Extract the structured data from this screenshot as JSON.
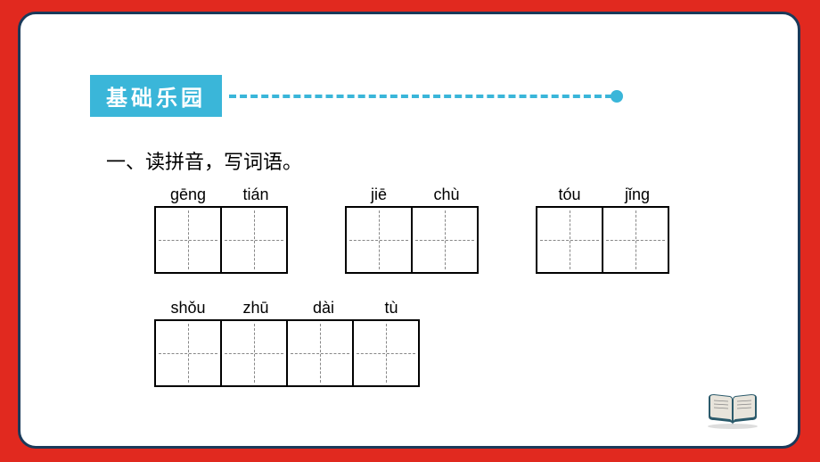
{
  "section_title": "基础乐园",
  "instruction": "一、读拼音，写词语。",
  "accent_color": "#3ab6d9",
  "frame_border_color": "#1a3a5a",
  "background_color": "#e1291f",
  "box_border_color": "#000000",
  "box_guide_color": "#888888",
  "rows": [
    {
      "groups": [
        {
          "pinyin": [
            "gēng",
            "tián"
          ],
          "cells": 2
        },
        {
          "pinyin": [
            "jiē",
            "chù"
          ],
          "cells": 2
        },
        {
          "pinyin": [
            "tóu",
            "jǐng"
          ],
          "cells": 2
        }
      ]
    },
    {
      "groups": [
        {
          "pinyin": [
            "shǒu",
            "zhū",
            "dài",
            "tù"
          ],
          "cells": 4
        }
      ]
    }
  ],
  "book_icon_colors": {
    "cover": "#2b5a6b",
    "page": "#e8e4db",
    "shadow": "#888888"
  }
}
